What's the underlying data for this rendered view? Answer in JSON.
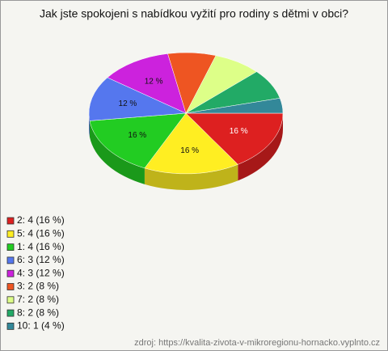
{
  "chart_data": {
    "type": "pie3d",
    "title": "Jak jste spokojeni s nabídkou vyžití pro rodiny s dětmi v obci?",
    "categories": [
      "2: 4 (16 %)",
      "5: 4 (16 %)",
      "1: 4 (16 %)",
      "6: 3 (12 %)",
      "4: 3 (12 %)",
      "3: 2 (8 %)",
      "7: 2 (8 %)",
      "8: 2 (8 %)",
      "10: 1 (4 %)"
    ],
    "values": [
      16,
      16,
      16,
      12,
      12,
      8,
      8,
      8,
      4
    ],
    "value_labels": [
      "16 %",
      "16 %",
      "16 %",
      "12 %",
      "12 %",
      null,
      null,
      null,
      null
    ],
    "colors": [
      "#dd2020",
      "#ffee22",
      "#22cc22",
      "#5577ee",
      "#cc22dd",
      "#ee5522",
      "#ddff88",
      "#22aa66",
      "#338899"
    ],
    "source": "zdroj: https://kvalita-zivota-v-mikroregionu-hornacko.vyplnto.cz"
  }
}
